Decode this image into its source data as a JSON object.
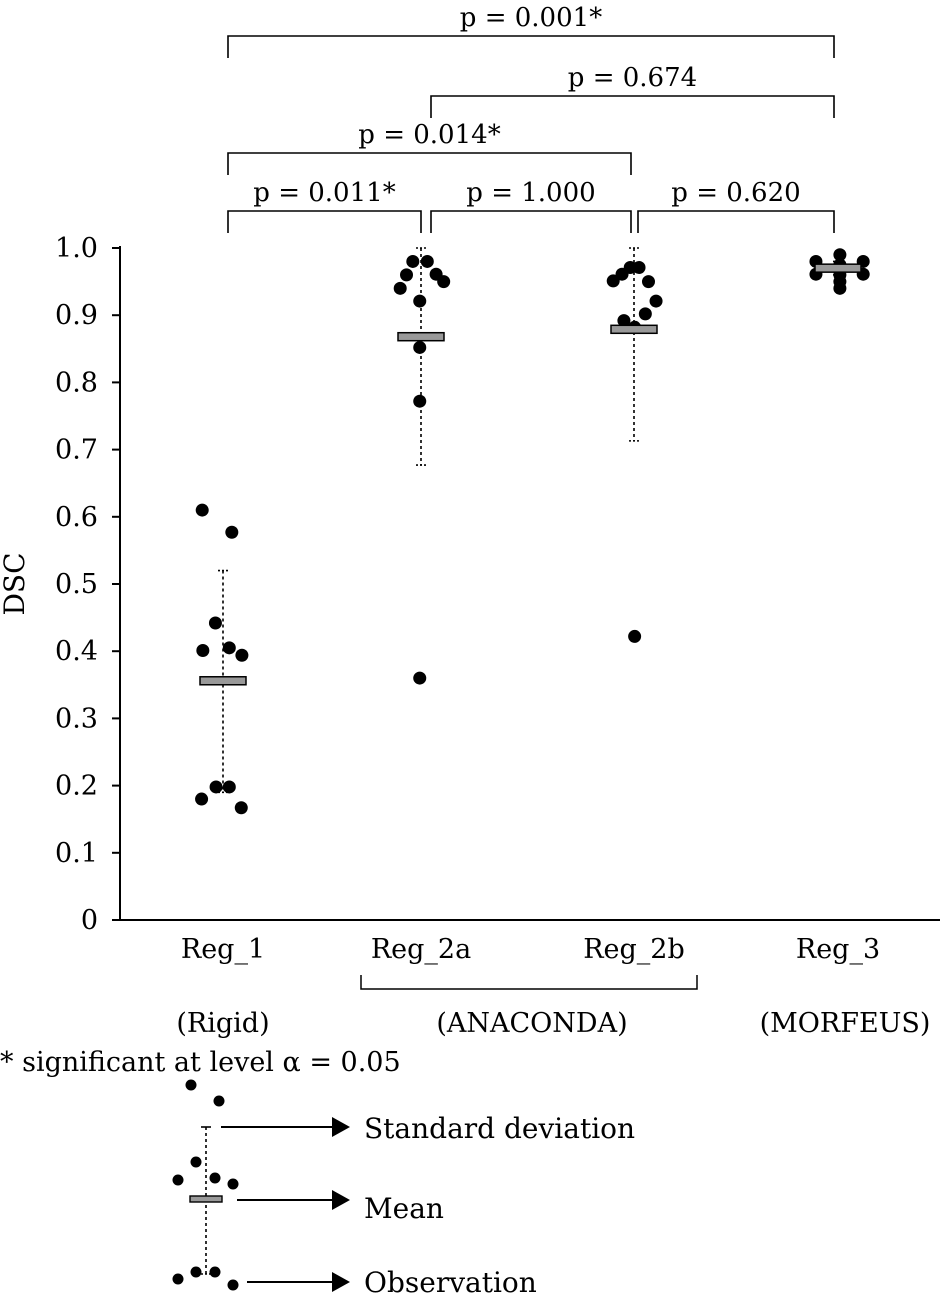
{
  "chart_data": {
    "type": "scatter",
    "ylabel": "DSC",
    "xlabel": "",
    "ylim": [
      0,
      1.0
    ],
    "yticks": [
      "0",
      "0.1",
      "0.2",
      "0.3",
      "0.4",
      "0.5",
      "0.6",
      "0.7",
      "0.8",
      "0.9",
      "1.0"
    ],
    "categories": [
      "Reg_1",
      "Reg_2a",
      "Reg_2b",
      "Reg_3"
    ],
    "groups": [
      {
        "label": "(Rigid)",
        "categories": [
          "Reg_1"
        ]
      },
      {
        "label": "(ANACONDA)",
        "categories": [
          "Reg_2a",
          "Reg_2b"
        ]
      },
      {
        "label": "(MORFEUS)",
        "categories": [
          "Reg_3"
        ]
      }
    ],
    "series": [
      {
        "category": "Reg_1",
        "mean": 0.356,
        "sd_range": [
          0.19,
          0.52
        ],
        "points": [
          {
            "offset": -0.33,
            "y": 0.61
          },
          {
            "offset": 0.14,
            "y": 0.577
          },
          {
            "offset": -0.12,
            "y": 0.442
          },
          {
            "offset": -0.32,
            "y": 0.401
          },
          {
            "offset": 0.1,
            "y": 0.405
          },
          {
            "offset": 0.3,
            "y": 0.394
          },
          {
            "offset": -0.11,
            "y": 0.198
          },
          {
            "offset": 0.1,
            "y": 0.198
          },
          {
            "offset": -0.34,
            "y": 0.18
          },
          {
            "offset": 0.29,
            "y": 0.167
          }
        ]
      },
      {
        "category": "Reg_2a",
        "mean": 0.868,
        "sd_range": [
          0.677,
          1.0
        ],
        "points": [
          {
            "offset": -0.33,
            "y": 0.94
          },
          {
            "offset": -0.23,
            "y": 0.96
          },
          {
            "offset": -0.13,
            "y": 0.98
          },
          {
            "offset": 0.1,
            "y": 0.98
          },
          {
            "offset": 0.24,
            "y": 0.961
          },
          {
            "offset": 0.36,
            "y": 0.95
          },
          {
            "offset": -0.02,
            "y": 0.921
          },
          {
            "offset": -0.02,
            "y": 0.852
          },
          {
            "offset": -0.02,
            "y": 0.772
          },
          {
            "offset": -0.02,
            "y": 0.36
          }
        ]
      },
      {
        "category": "Reg_2b",
        "mean": 0.879,
        "sd_range": [
          0.713,
          1.0
        ],
        "points": [
          {
            "offset": -0.33,
            "y": 0.951
          },
          {
            "offset": -0.19,
            "y": 0.961
          },
          {
            "offset": -0.06,
            "y": 0.971
          },
          {
            "offset": 0.08,
            "y": 0.971
          },
          {
            "offset": 0.23,
            "y": 0.95
          },
          {
            "offset": 0.35,
            "y": 0.921
          },
          {
            "offset": -0.16,
            "y": 0.892
          },
          {
            "offset": 0.18,
            "y": 0.902
          },
          {
            "offset": 0.01,
            "y": 0.882
          },
          {
            "offset": 0.01,
            "y": 0.422
          }
        ]
      },
      {
        "category": "Reg_3",
        "mean": 0.97,
        "sd_range": [
          0.96,
          0.98
        ],
        "points": [
          {
            "offset": -0.35,
            "y": 0.98
          },
          {
            "offset": -0.35,
            "y": 0.961
          },
          {
            "offset": 0.4,
            "y": 0.98
          },
          {
            "offset": 0.4,
            "y": 0.961
          },
          {
            "offset": 0.03,
            "y": 0.99
          },
          {
            "offset": 0.03,
            "y": 0.975
          },
          {
            "offset": 0.03,
            "y": 0.96
          },
          {
            "offset": 0.03,
            "y": 0.95
          },
          {
            "offset": 0.03,
            "y": 0.94
          }
        ]
      }
    ],
    "comparisons": [
      {
        "from": "Reg_1",
        "to": "Reg_2a",
        "label": "p = 0.011*",
        "level": 1
      },
      {
        "from": "Reg_2a",
        "to": "Reg_2b",
        "label": "p = 1.000",
        "level": 1
      },
      {
        "from": "Reg_2b",
        "to": "Reg_3",
        "label": "p = 0.620",
        "level": 1
      },
      {
        "from": "Reg_1",
        "to": "Reg_2b",
        "label": "p = 0.014*",
        "level": 2
      },
      {
        "from": "Reg_2a",
        "to": "Reg_3",
        "label": "p = 0.674",
        "level": 3
      },
      {
        "from": "Reg_1",
        "to": "Reg_3",
        "label": "p = 0.001*",
        "level": 4
      }
    ],
    "note": "* significant at level α = 0.05",
    "legend": {
      "sd_label": "Standard deviation",
      "mean_label": "Mean",
      "obs_label": "Observation"
    },
    "colors": {
      "mean_bar": "#999999",
      "points": "#000000"
    }
  }
}
